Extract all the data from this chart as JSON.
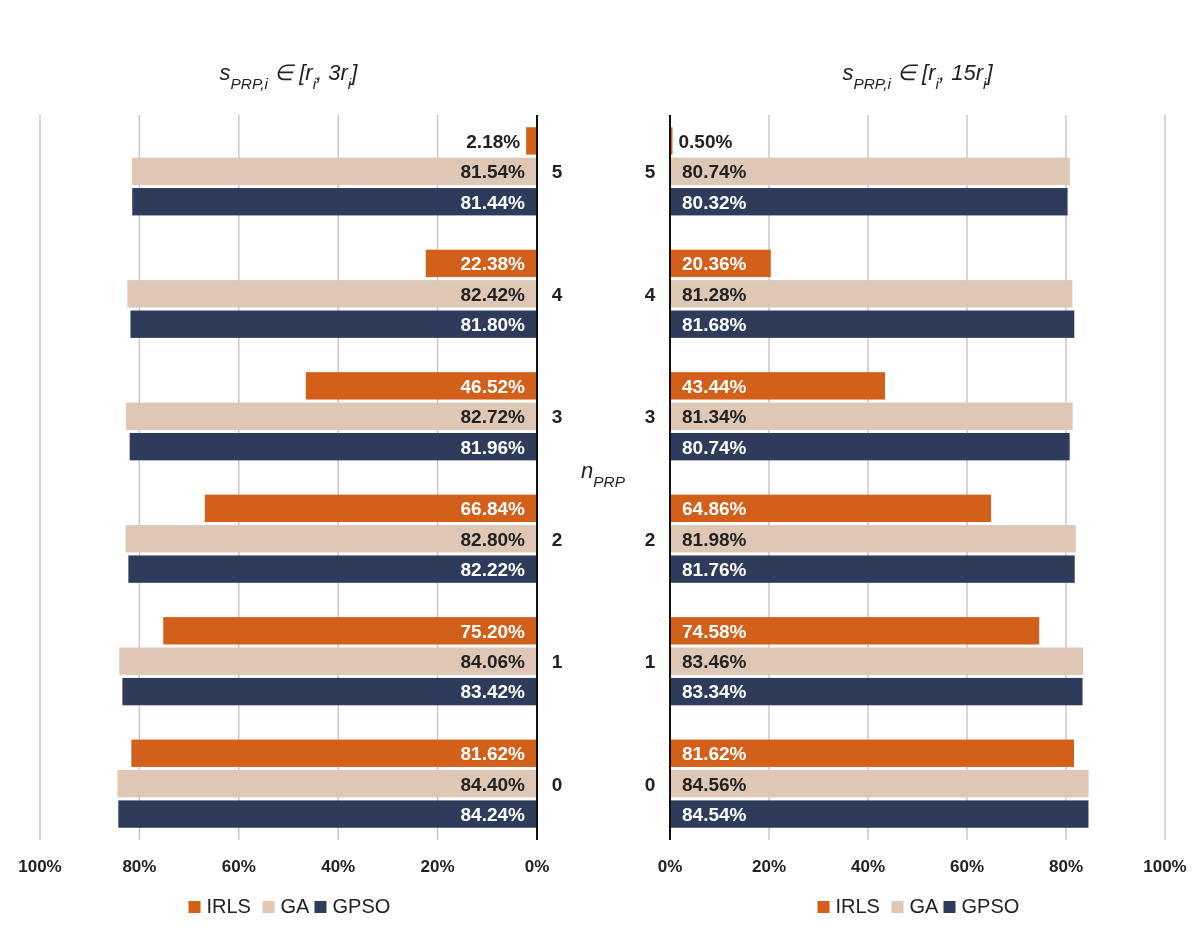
{
  "chart_data": [
    {
      "type": "bar",
      "orientation": "horizontal",
      "title": "s$_{PRP,i}$ ∈ [r$_{i}$, 3r$_{i}$]",
      "ylabel": "n$_{PRP}$",
      "categories": [
        "5",
        "4",
        "3",
        "2",
        "1",
        "0"
      ],
      "xlim": [
        100,
        0
      ],
      "xticks": [
        {
          "value": 100,
          "label": "100%"
        },
        {
          "value": 80,
          "label": "80%"
        },
        {
          "value": 60,
          "label": "60%"
        },
        {
          "value": 40,
          "label": "40%"
        },
        {
          "value": 20,
          "label": "20%"
        },
        {
          "value": 0,
          "label": "0%"
        }
      ],
      "grid": "x",
      "legend": "bottom",
      "series": [
        {
          "name": "IRLS",
          "color": "#d2601a",
          "values": [
            2.18,
            22.38,
            46.52,
            66.84,
            75.2,
            81.62
          ],
          "value_labels": [
            "2.18%",
            "22.38%",
            "46.52%",
            "66.84%",
            "75.20%",
            "81.62%"
          ]
        },
        {
          "name": "GA",
          "color": "#dfc7b5",
          "values": [
            81.54,
            82.42,
            82.72,
            82.8,
            84.06,
            84.4
          ],
          "value_labels": [
            "81.54%",
            "82.42%",
            "82.72%",
            "82.80%",
            "84.06%",
            "84.40%"
          ]
        },
        {
          "name": "GPSO",
          "color": "#2e3b5a",
          "values": [
            81.44,
            81.8,
            81.96,
            82.22,
            83.42,
            84.24
          ],
          "value_labels": [
            "81.44%",
            "81.80%",
            "81.96%",
            "82.22%",
            "83.42%",
            "84.24%"
          ]
        }
      ]
    },
    {
      "type": "bar",
      "orientation": "horizontal",
      "title": "s$_{PRP,i}$ ∈ [r$_{i}$, 15r$_{i}$]",
      "categories": [
        "5",
        "4",
        "3",
        "2",
        "1",
        "0"
      ],
      "xlim": [
        0,
        100
      ],
      "xticks": [
        {
          "value": 0,
          "label": "0%"
        },
        {
          "value": 20,
          "label": "20%"
        },
        {
          "value": 40,
          "label": "40%"
        },
        {
          "value": 60,
          "label": "60%"
        },
        {
          "value": 80,
          "label": "80%"
        },
        {
          "value": 100,
          "label": "100%"
        }
      ],
      "grid": "x",
      "legend": "bottom",
      "series": [
        {
          "name": "IRLS",
          "color": "#d2601a",
          "values": [
            0.5,
            20.36,
            43.44,
            64.86,
            74.58,
            81.62
          ],
          "value_labels": [
            "0.50%",
            "20.36%",
            "43.44%",
            "64.86%",
            "74.58%",
            "81.62%"
          ]
        },
        {
          "name": "GA",
          "color": "#dfc7b5",
          "values": [
            80.74,
            81.28,
            81.34,
            81.98,
            83.46,
            84.56
          ],
          "value_labels": [
            "80.74%",
            "81.28%",
            "81.34%",
            "81.98%",
            "83.46%",
            "84.56%"
          ]
        },
        {
          "name": "GPSO",
          "color": "#2e3b5a",
          "values": [
            80.32,
            81.68,
            80.74,
            81.76,
            83.34,
            84.54
          ],
          "value_labels": [
            "80.32%",
            "81.68%",
            "80.74%",
            "81.76%",
            "83.34%",
            "84.54%"
          ]
        }
      ]
    }
  ]
}
